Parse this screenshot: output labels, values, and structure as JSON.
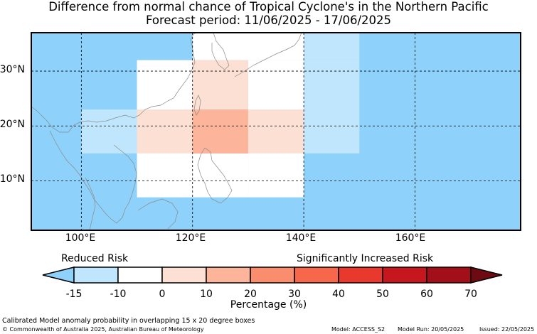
{
  "title": {
    "line1": "Difference from normal chance of Tropical Cyclone's in the Northern Pacific",
    "line2": "Forecast period: 11/06/2025 - 17/06/2025"
  },
  "map": {
    "lon_range": [
      91,
      179
    ],
    "lat_range": [
      1,
      37
    ],
    "lat_ticks": [
      "10°N",
      "20°N",
      "30°N"
    ],
    "lon_ticks": [
      "100°E",
      "120°E",
      "140°E",
      "160°E"
    ],
    "ocean_color": "#8ed1fb",
    "cells": [
      {
        "lon": [
          120,
          140
        ],
        "lat": [
          32,
          47
        ],
        "bin": "-10 to 0"
      },
      {
        "lon": [
          140,
          150
        ],
        "lat": [
          32,
          47
        ],
        "bin": "-15 to -10"
      },
      {
        "lon": [
          110,
          120
        ],
        "lat": [
          7,
          32
        ],
        "bin": "-10 to 0"
      },
      {
        "lon": [
          130,
          140
        ],
        "lat": [
          7,
          32
        ],
        "bin": "-10 to 0"
      },
      {
        "lon": [
          120,
          130
        ],
        "lat": [
          7,
          15
        ],
        "bin": "-10 to 0"
      },
      {
        "lon": [
          120,
          130
        ],
        "lat": [
          23,
          32
        ],
        "bin": "0 to 10"
      },
      {
        "lon": [
          110,
          120
        ],
        "lat": [
          15,
          23
        ],
        "bin": "0 to 10"
      },
      {
        "lon": [
          130,
          140
        ],
        "lat": [
          15,
          23
        ],
        "bin": "0 to 10"
      },
      {
        "lon": [
          120,
          130
        ],
        "lat": [
          15,
          23
        ],
        "bin": "10 to 20"
      },
      {
        "lon": [
          100,
          110
        ],
        "lat": [
          15,
          23
        ],
        "bin": "-15 to -10"
      },
      {
        "lon": [
          140,
          150
        ],
        "lat": [
          15,
          32
        ],
        "bin": "-15 to -10"
      }
    ]
  },
  "colorbar": {
    "reduced_label": "Reduced Risk",
    "increased_label": "Significantly Increased Risk",
    "label": "Percentage (%)",
    "ticks": [
      "-15",
      "-10",
      "0",
      "10",
      "20",
      "30",
      "40",
      "50",
      "60",
      "70"
    ],
    "under_color": "#8ed1fb",
    "over_color": "#6e0a12",
    "bins": [
      {
        "range": "-15 to -10",
        "color": "#bfe6fd"
      },
      {
        "range": "-10 to 0",
        "color": "#ffffff"
      },
      {
        "range": "0 to 10",
        "color": "#fde0d4"
      },
      {
        "range": "10 to 20",
        "color": "#fcb49a"
      },
      {
        "range": "20 to 30",
        "color": "#fb8d6f"
      },
      {
        "range": "30 to 40",
        "color": "#f7674c"
      },
      {
        "range": "40 to 50",
        "color": "#e9392f"
      },
      {
        "range": "50 to 60",
        "color": "#c7171e"
      },
      {
        "range": "60 to 70",
        "color": "#a30f19"
      }
    ]
  },
  "footer": {
    "description": "Calibrated Model anomaly probability in overlapping 15 x 20 degree boxes",
    "copyright": "© Commonwealth of Australia 2025, Australian Bureau of Meteorology",
    "model": "Model: ACCESS_S2",
    "model_run": "Model Run: 20/05/2025",
    "issued": "Issued: 22/05/2025"
  }
}
